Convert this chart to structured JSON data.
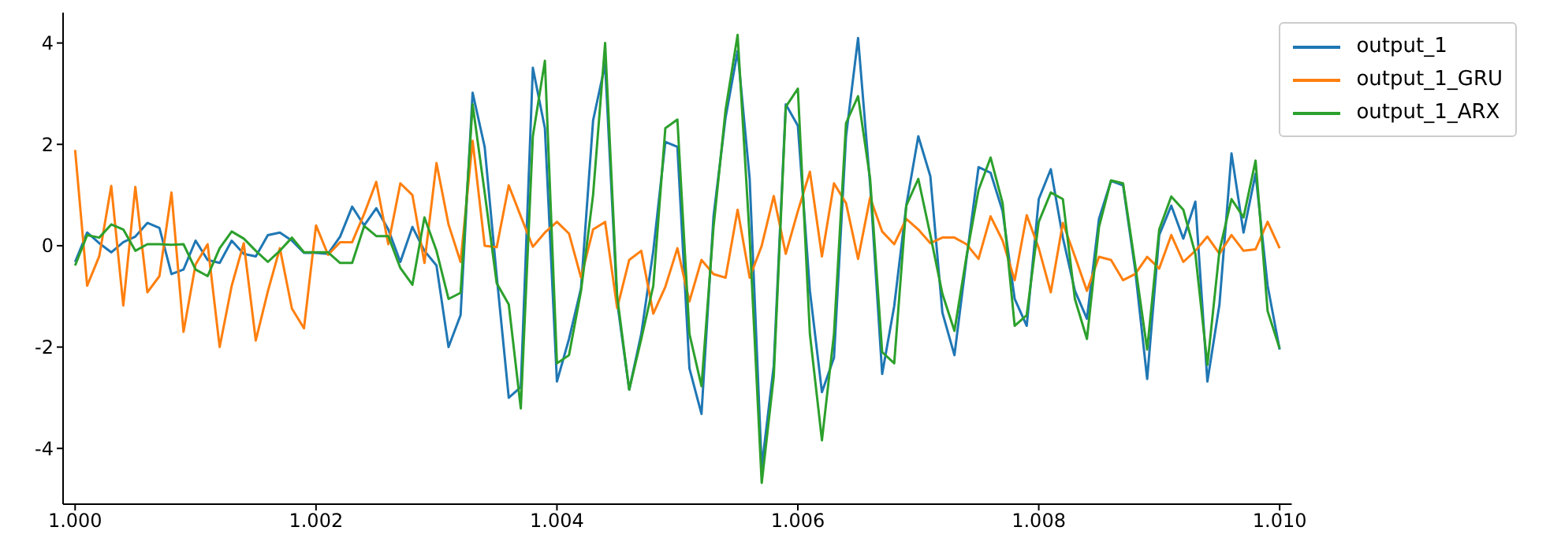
{
  "chart_data": {
    "type": "line",
    "legend": "top right",
    "x": [
      1.0,
      1.0001,
      1.0002,
      1.0003,
      1.0004,
      1.0005,
      1.0006,
      1.0007,
      1.0008,
      1.0009,
      1.001,
      1.0011,
      1.0012,
      1.0013,
      1.0014,
      1.0015,
      1.0016,
      1.0017,
      1.0018,
      1.0019,
      1.002,
      1.0021,
      1.0022,
      1.0023,
      1.0024,
      1.0025,
      1.0026,
      1.0027,
      1.0028,
      1.0029,
      1.003,
      1.0031,
      1.0032,
      1.0033,
      1.0034,
      1.0035,
      1.0036,
      1.0037,
      1.0038,
      1.0039,
      1.004,
      1.0041,
      1.0042,
      1.0043,
      1.0044,
      1.0045,
      1.0046,
      1.0047,
      1.0048,
      1.0049,
      1.005,
      1.0051,
      1.0052,
      1.0053,
      1.0054,
      1.0055,
      1.0056,
      1.0057,
      1.0058,
      1.0059,
      1.006,
      1.0061,
      1.0062,
      1.0063,
      1.0064,
      1.0065,
      1.0066,
      1.0067,
      1.0068,
      1.0069,
      1.007,
      1.0071,
      1.0072,
      1.0073,
      1.0074,
      1.0075,
      1.0076,
      1.0077,
      1.0078,
      1.0079,
      1.008,
      1.0081,
      1.0082,
      1.0083,
      1.0084,
      1.0085,
      1.0086,
      1.0087,
      1.0088,
      1.0089,
      1.009,
      1.0091,
      1.0092,
      1.0093,
      1.0094,
      1.0095,
      1.0096,
      1.0097,
      1.0098,
      1.0099,
      1.01
    ],
    "xlim": [
      0.9999,
      1.0101
    ],
    "xticks": [
      {
        "value": 1.0,
        "label": "1.000"
      },
      {
        "value": 1.002,
        "label": "1.002"
      },
      {
        "value": 1.004,
        "label": "1.004"
      },
      {
        "value": 1.006,
        "label": "1.006"
      },
      {
        "value": 1.008,
        "label": "1.008"
      },
      {
        "value": 1.01,
        "label": "1.010"
      }
    ],
    "ylim": [
      -5.1,
      4.6
    ],
    "yticks": [
      -4,
      -2,
      0,
      2,
      4
    ],
    "series": [
      {
        "name": "output_1",
        "color": "#1f77b4",
        "values": [
          -0.32,
          0.26,
          0.05,
          -0.13,
          0.07,
          0.18,
          0.45,
          0.35,
          -0.56,
          -0.47,
          0.1,
          -0.28,
          -0.34,
          0.1,
          -0.16,
          -0.21,
          0.21,
          0.26,
          0.1,
          -0.14,
          -0.14,
          -0.16,
          0.18,
          0.77,
          0.4,
          0.74,
          0.32,
          -0.32,
          0.37,
          -0.1,
          -0.39,
          -2.0,
          -1.37,
          3.02,
          1.95,
          -0.6,
          -3.0,
          -2.79,
          3.51,
          2.32,
          -2.68,
          -1.84,
          -0.84,
          2.47,
          3.58,
          -1.11,
          -2.84,
          -1.74,
          -0.1,
          2.05,
          1.95,
          -2.42,
          -3.32,
          0.58,
          2.53,
          3.84,
          1.32,
          -4.37,
          -2.37,
          2.79,
          2.37,
          -0.89,
          -2.89,
          -2.21,
          2.16,
          4.1,
          1.21,
          -2.53,
          -1.19,
          0.79,
          2.16,
          1.37,
          -1.32,
          -2.16,
          -0.26,
          1.55,
          1.44,
          0.68,
          -1.05,
          -1.58,
          0.92,
          1.51,
          0.16,
          -0.89,
          -1.44,
          0.53,
          1.28,
          1.19,
          -0.47,
          -2.63,
          0.21,
          0.79,
          0.14,
          0.87,
          -2.68,
          -1.16,
          1.82,
          0.26,
          1.42,
          -0.79,
          -2.05
        ]
      },
      {
        "name": "output_1_GRU",
        "color": "#ff7f0e",
        "values": [
          1.89,
          -0.79,
          -0.21,
          1.18,
          -1.18,
          1.16,
          -0.92,
          -0.6,
          1.05,
          -1.7,
          -0.37,
          0.03,
          -2.0,
          -0.79,
          0.05,
          -1.87,
          -0.9,
          -0.05,
          -1.24,
          -1.63,
          0.4,
          -0.18,
          0.07,
          0.07,
          0.63,
          1.26,
          0.03,
          1.23,
          1.0,
          -0.34,
          1.63,
          0.42,
          -0.32,
          2.07,
          0.0,
          -0.03,
          1.19,
          0.58,
          -0.02,
          0.26,
          0.47,
          0.24,
          -0.63,
          0.32,
          0.47,
          -1.23,
          -0.28,
          -0.1,
          -1.34,
          -0.81,
          -0.05,
          -1.1,
          -0.28,
          -0.56,
          -0.63,
          0.71,
          -0.63,
          0.0,
          0.98,
          -0.16,
          0.68,
          1.46,
          -0.21,
          1.23,
          0.84,
          -0.26,
          0.95,
          0.28,
          0.03,
          0.53,
          0.32,
          0.05,
          0.16,
          0.16,
          0.03,
          -0.26,
          0.58,
          0.1,
          -0.68,
          0.6,
          -0.05,
          -0.92,
          0.45,
          -0.21,
          -0.89,
          -0.22,
          -0.28,
          -0.68,
          -0.56,
          -0.22,
          -0.45,
          0.21,
          -0.32,
          -0.1,
          0.18,
          -0.16,
          0.21,
          -0.1,
          -0.07,
          0.47,
          -0.05
        ]
      },
      {
        "name": "output_1_ARX",
        "color": "#2ca02c",
        "values": [
          -0.39,
          0.21,
          0.16,
          0.42,
          0.32,
          -0.1,
          0.03,
          0.03,
          0.02,
          0.03,
          -0.47,
          -0.6,
          -0.05,
          0.28,
          0.14,
          -0.1,
          -0.32,
          -0.1,
          0.16,
          -0.13,
          -0.13,
          -0.13,
          -0.34,
          -0.34,
          0.39,
          0.19,
          0.19,
          -0.44,
          -0.77,
          0.56,
          -0.1,
          -1.05,
          -0.93,
          2.79,
          1.05,
          -0.74,
          -1.16,
          -3.21,
          2.16,
          3.65,
          -2.32,
          -2.16,
          -0.89,
          1.0,
          4.0,
          -1.0,
          -2.84,
          -1.84,
          -0.79,
          2.32,
          2.49,
          -1.74,
          -2.77,
          0.37,
          2.68,
          4.16,
          0.16,
          -4.68,
          -2.58,
          2.74,
          3.1,
          -1.74,
          -3.84,
          -1.74,
          2.42,
          2.95,
          1.32,
          -2.1,
          -2.32,
          0.79,
          1.32,
          0.21,
          -0.95,
          -1.68,
          -0.21,
          1.1,
          1.74,
          0.84,
          -1.58,
          -1.37,
          0.47,
          1.05,
          0.92,
          -1.05,
          -1.84,
          0.37,
          1.29,
          1.23,
          -0.37,
          -2.05,
          0.32,
          0.97,
          0.71,
          -0.16,
          -2.35,
          -0.1,
          0.92,
          0.56,
          1.68,
          -1.29,
          -2.03
        ]
      }
    ]
  }
}
